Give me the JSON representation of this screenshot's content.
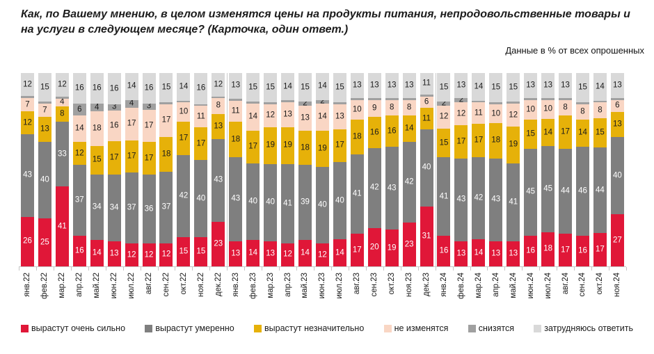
{
  "header": {
    "title": "Как, по Вашему мнению, в целом изменятся цены на продукты питания, непродовольственные товары и на услуги в следующем месяце? (Карточка, один ответ.)",
    "subtitle": "Данные в % от всех опрошенных"
  },
  "chart_data": {
    "type": "bar",
    "stacked": true,
    "unit": "% от всех опрошенных",
    "legend_position": "bottom",
    "label_min_show": 2,
    "year_separator_boundaries": [
      12,
      24
    ],
    "categories": [
      "янв.22",
      "фев.22",
      "мар.22",
      "апр.22",
      "май.22",
      "июн.22",
      "июл.22",
      "авг.22",
      "сен.22",
      "окт.22",
      "ноя.22",
      "дек.22",
      "янв.23",
      "фев.23",
      "мар.23",
      "апр.23",
      "май.23",
      "июн.23",
      "июл.23",
      "авг.23",
      "сен.23",
      "окт.23",
      "ноя.23",
      "дек.23",
      "янв.24",
      "фев.24",
      "мар.24",
      "апр.24",
      "май.24",
      "июн.24",
      "июл.24",
      "авг.24",
      "сен.24",
      "окт.24",
      "ноя.24"
    ],
    "series": [
      {
        "name": "вырастут очень сильно",
        "color": "#e01738",
        "label_color": "#ffffff",
        "values": [
          26,
          25,
          41,
          16,
          14,
          13,
          12,
          12,
          12,
          15,
          15,
          23,
          13,
          14,
          13,
          12,
          14,
          12,
          14,
          17,
          20,
          19,
          23,
          31,
          16,
          13,
          14,
          13,
          13,
          16,
          18,
          17,
          16,
          17,
          27
        ]
      },
      {
        "name": "вырастут умеренно",
        "color": "#7f7f7f",
        "label_color": "#ffffff",
        "values": [
          43,
          40,
          33,
          37,
          34,
          34,
          37,
          36,
          37,
          42,
          40,
          43,
          43,
          40,
          40,
          41,
          39,
          40,
          40,
          41,
          42,
          43,
          42,
          40,
          41,
          43,
          42,
          43,
          41,
          45,
          45,
          44,
          46,
          44,
          40
        ]
      },
      {
        "name": "вырастут незначительно",
        "color": "#e6b109",
        "label_color": "#1a1a1a",
        "values": [
          12,
          13,
          8,
          12,
          15,
          17,
          17,
          17,
          18,
          17,
          17,
          13,
          18,
          17,
          19,
          19,
          18,
          19,
          17,
          18,
          16,
          16,
          14,
          11,
          15,
          17,
          17,
          18,
          19,
          15,
          14,
          17,
          14,
          15,
          13
        ]
      },
      {
        "name": "не изменятся",
        "color": "#f9d6c4",
        "label_color": "#1a1a1a",
        "values": [
          7,
          7,
          4,
          14,
          18,
          16,
          17,
          17,
          17,
          10,
          11,
          8,
          11,
          14,
          12,
          13,
          13,
          14,
          13,
          10,
          9,
          8,
          8,
          6,
          12,
          12,
          11,
          10,
          12,
          10,
          10,
          8,
          8,
          8,
          6
        ]
      },
      {
        "name": "снизятся",
        "color": "#a0a0a0",
        "label_color": "#1a1a1a",
        "values": [
          1,
          1,
          1,
          6,
          4,
          3,
          4,
          3,
          1,
          1,
          1,
          1,
          1,
          1,
          1,
          1,
          2,
          2,
          1,
          1,
          1,
          1,
          1,
          1,
          2,
          2,
          1,
          1,
          1,
          1,
          1,
          1,
          1,
          1,
          1
        ]
      },
      {
        "name": "затрудняюсь ответить",
        "color": "#d9d9d9",
        "label_color": "#1a1a1a",
        "values": [
          12,
          15,
          12,
          16,
          16,
          16,
          14,
          16,
          15,
          14,
          16,
          12,
          13,
          15,
          15,
          14,
          15,
          14,
          15,
          13,
          13,
          13,
          13,
          11,
          15,
          13,
          14,
          15,
          15,
          13,
          13,
          13,
          15,
          14,
          13
        ]
      }
    ]
  }
}
